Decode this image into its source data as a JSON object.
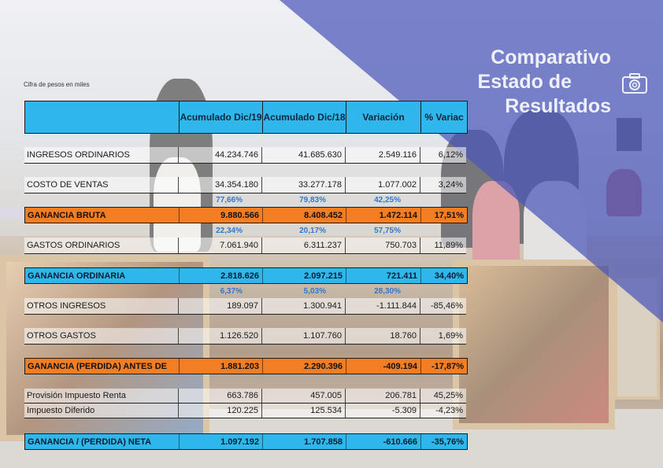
{
  "caption": "Cifra de pesos en miles",
  "title_lines": [
    "Comparativo",
    "Estado de",
    "Resultados"
  ],
  "headers": {
    "c1": "Acumulado Dic/19",
    "c2": "Acumulado Dic/18",
    "c3": "Variación",
    "c4": "% Variac"
  },
  "rows": {
    "ingresos": {
      "label": "INGRESOS ORDINARIOS",
      "v19": "44.234.746",
      "v18": "41.685.630",
      "var": "2.549.116",
      "pct": "6,12%"
    },
    "costo": {
      "label": "COSTO DE VENTAS",
      "v19": "34.354.180",
      "v18": "33.277.178",
      "var": "1.077.002",
      "pct": "3,24%"
    },
    "costo_pct": {
      "v19": "77,66%",
      "v18": "79,83%",
      "var": "42,25%"
    },
    "ganancia_bruta": {
      "label": "GANANCIA BRUTA",
      "v19": "9.880.566",
      "v18": "8.408.452",
      "var": "1.472.114",
      "pct": "17,51%"
    },
    "bruta_pct": {
      "v19": "22,34%",
      "v18": "20,17%",
      "var": "57,75%"
    },
    "gastos": {
      "label": "GASTOS ORDINARIOS",
      "v19": "7.061.940",
      "v18": "6.311.237",
      "var": "750.703",
      "pct": "11,89%"
    },
    "ganancia_ordinaria": {
      "label": "GANANCIA ORDINARIA",
      "v19": "2.818.626",
      "v18": "2.097.215",
      "var": "721.411",
      "pct": "34,40%"
    },
    "ordinaria_pct": {
      "v19": "6,37%",
      "v18": "5,03%",
      "var": "28,30%"
    },
    "otros_ingresos": {
      "label": "OTROS INGRESOS",
      "v19": "189.097",
      "v18": "1.300.941",
      "var": "-1.111.844",
      "pct": "-85,46%"
    },
    "otros_gastos": {
      "label": "OTROS GASTOS",
      "v19": "1.126.520",
      "v18": "1.107.760",
      "var": "18.760",
      "pct": "1,69%"
    },
    "antes_impuestos": {
      "label": "GANANCIA (PERDIDA) ANTES DE",
      "v19": "1.881.203",
      "v18": "2.290.396",
      "var": "-409.194",
      "pct": "-17,87%"
    },
    "provision": {
      "label": "Provisión Impuesto Renta",
      "v19": "663.786",
      "v18": "457.005",
      "var": "206.781",
      "pct": "45,25%"
    },
    "diferido": {
      "label": "Impuesto Diferido",
      "v19": "120.225",
      "v18": "125.534",
      "var": "-5.309",
      "pct": "-4,23%"
    },
    "neta": {
      "label": "GANANCIA / (PERDIDA) NETA",
      "v19": "1.097.192",
      "v18": "1.707.858",
      "var": "-610.666",
      "pct": "-35,76%"
    }
  },
  "colors": {
    "blue": "#2fb6ea",
    "orange": "#f37d22",
    "triangle": "#4a56b8"
  },
  "icons": {
    "camera": "camera-icon"
  }
}
